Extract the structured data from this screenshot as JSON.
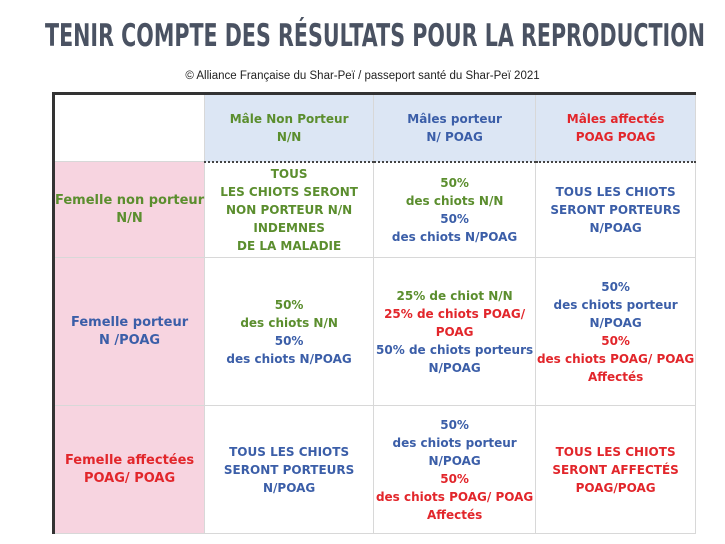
{
  "header": {
    "title": "TENIR COMPTE DES RÉSULTATS POUR LA  REPRODUCTION",
    "subtitle": "© Alliance Française du Shar-Peï / passeport santé du Shar-Peï 2021"
  },
  "table": {
    "columns": [
      {
        "lines": [
          {
            "text": "Mâle Non Porteur",
            "color": "#5b8e2e"
          },
          {
            "text": "N/N",
            "color": "#5b8e2e"
          }
        ]
      },
      {
        "lines": [
          {
            "text": "Mâles porteur",
            "color": "#3b5ea8"
          },
          {
            "text": "N/ POAG",
            "color": "#3b5ea8"
          }
        ]
      },
      {
        "lines": [
          {
            "text": "Mâles affectés",
            "color": "#e2262b"
          },
          {
            "text": "POAG POAG",
            "color": "#e2262b"
          }
        ]
      }
    ],
    "rows": [
      {
        "header": {
          "lines": [
            {
              "text": "Femelle non porteur",
              "color": "#5b8e2e"
            },
            {
              "text": "N/N",
              "color": "#5b8e2e"
            }
          ]
        },
        "cells": [
          {
            "lines": [
              {
                "text": "TOUS",
                "color": "#5b8e2e"
              },
              {
                "text": "LES CHIOTS SERONT",
                "color": "#5b8e2e"
              },
              {
                "text": "NON PORTEUR  N/N",
                "color": "#5b8e2e"
              },
              {
                "text": "INDEMNES",
                "color": "#5b8e2e"
              },
              {
                "text": "DE LA MALADIE",
                "color": "#5b8e2e"
              }
            ]
          },
          {
            "lines": [
              {
                "text": "50%",
                "color": "#5b8e2e"
              },
              {
                "text": "des chiots  N/N",
                "color": "#5b8e2e"
              },
              {
                "text": "50%",
                "color": "#3b5ea8"
              },
              {
                "text": "des chiots N/POAG",
                "color": "#3b5ea8"
              }
            ]
          },
          {
            "lines": [
              {
                "text": "TOUS LES CHIOTS",
                "color": "#3b5ea8"
              },
              {
                "text": "SERONT PORTEURS",
                "color": "#3b5ea8"
              },
              {
                "text": "N/POAG",
                "color": "#3b5ea8"
              }
            ]
          }
        ]
      },
      {
        "header": {
          "lines": [
            {
              "text": "Femelle porteur",
              "color": "#3b5ea8"
            },
            {
              "text": "N /POAG",
              "color": "#3b5ea8"
            }
          ]
        },
        "cells": [
          {
            "lines": [
              {
                "text": "50%",
                "color": "#5b8e2e"
              },
              {
                "text": "des chiots  N/N",
                "color": "#5b8e2e"
              },
              {
                "text": "50%",
                "color": "#3b5ea8"
              },
              {
                "text": "des chiots N/POAG",
                "color": "#3b5ea8"
              }
            ]
          },
          {
            "lines": [
              {
                "text": "25% de chiot  N/N",
                "color": "#5b8e2e"
              },
              {
                "text": "25% de chiots POAG/",
                "color": "#e2262b"
              },
              {
                "text": "POAG",
                "color": "#e2262b"
              },
              {
                "text": "50% de  chiots porteurs",
                "color": "#3b5ea8"
              },
              {
                "text": "N/POAG",
                "color": "#3b5ea8"
              }
            ]
          },
          {
            "lines": [
              {
                "text": "50%",
                "color": "#3b5ea8"
              },
              {
                "text": "des chiots  porteur",
                "color": "#3b5ea8"
              },
              {
                "text": "N/POAG",
                "color": "#3b5ea8"
              },
              {
                "text": "50%",
                "color": "#e2262b"
              },
              {
                "text": "des chiots POAG/ POAG",
                "color": "#e2262b"
              },
              {
                "text": "Affectés",
                "color": "#e2262b"
              }
            ]
          }
        ]
      },
      {
        "header": {
          "lines": [
            {
              "text": "Femelle affectées",
              "color": "#e2262b"
            },
            {
              "text": "POAG/ POAG",
              "color": "#e2262b"
            }
          ]
        },
        "cells": [
          {
            "lines": [
              {
                "text": "TOUS LES CHIOTS",
                "color": "#3b5ea8"
              },
              {
                "text": "SERONT PORTEURS",
                "color": "#3b5ea8"
              },
              {
                "text": "N/POAG",
                "color": "#3b5ea8"
              }
            ]
          },
          {
            "lines": [
              {
                "text": "50%",
                "color": "#3b5ea8"
              },
              {
                "text": "des chiots  porteur",
                "color": "#3b5ea8"
              },
              {
                "text": "N/POAG",
                "color": "#3b5ea8"
              },
              {
                "text": "50%",
                "color": "#e2262b"
              },
              {
                "text": "des chiots POAG/ POAG",
                "color": "#e2262b"
              },
              {
                "text": "Affectés",
                "color": "#e2262b"
              }
            ]
          },
          {
            "lines": [
              {
                "text": "TOUS LES CHIOTS",
                "color": "#e2262b"
              },
              {
                "text": "SERONT AFFECTÉS",
                "color": "#e2262b"
              },
              {
                "text": "POAG/POAG",
                "color": "#e2262b"
              }
            ]
          }
        ]
      }
    ]
  }
}
